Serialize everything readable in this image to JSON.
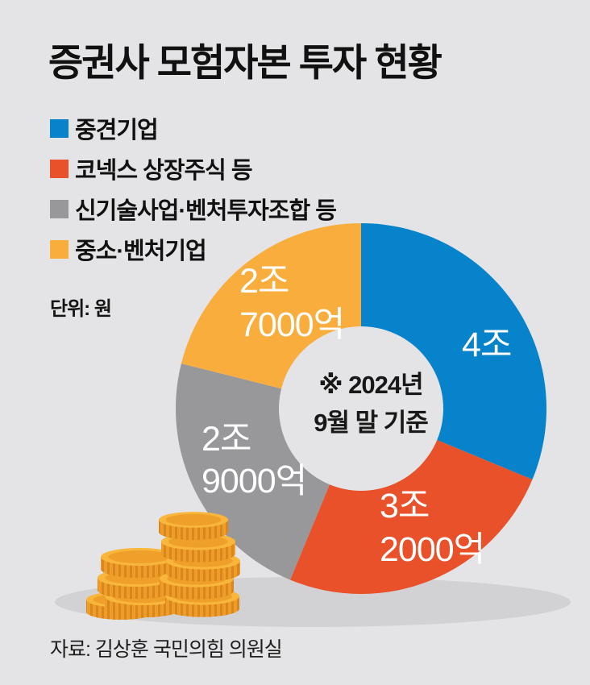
{
  "title": "증권사 모험자본 투자 현황",
  "unit_note": "단위: 원",
  "source": "자료: 김상훈 국민의힘 의원실",
  "center_note": {
    "line1": "※ 2024년",
    "line2": "9월 말 기준"
  },
  "colors": {
    "background": "#e4e4e6",
    "shadow": "#d2d2d4",
    "title_text": "#111111",
    "slice_label_text": "#ffffff",
    "coin_dark": "#d9821e",
    "coin_body": "#ee9e28",
    "coin_ridge": "#c97716",
    "coin_face": "#f8b63c",
    "coin_face_inner": "#efa02a"
  },
  "chart_data": {
    "type": "pie",
    "subtype": "donut",
    "title": "증권사 모험자본 투자 현황",
    "unit": "원",
    "as_of_note": "※ 2024년 9월 말 기준",
    "start_angle_deg": 0,
    "direction": "clockwise",
    "legend_position": "top-left",
    "slices": [
      {
        "name": "중견기업",
        "value_label": "4조",
        "value_trillion_won": 4.0,
        "share_pct": 31.25,
        "color": "#0683ca",
        "label_lines": [
          "4조"
        ]
      },
      {
        "name": "코넥스 상장주식 등",
        "value_label": "3조 2000억",
        "value_trillion_won": 3.2,
        "share_pct": 25.0,
        "color": "#e8512a",
        "label_lines": [
          "3조",
          "2000억"
        ]
      },
      {
        "name": "신기술사업·벤처투자조합 등",
        "value_label": "2조 9000억",
        "value_trillion_won": 2.9,
        "share_pct": 22.66,
        "color": "#98989b",
        "label_lines": [
          "2조",
          "9000억"
        ]
      },
      {
        "name": "중소·벤처기업",
        "value_label": "2조 7000억",
        "value_trillion_won": 2.7,
        "share_pct": 21.09,
        "color": "#f8ad3c",
        "label_lines": [
          "2조",
          "7000억"
        ]
      }
    ]
  }
}
